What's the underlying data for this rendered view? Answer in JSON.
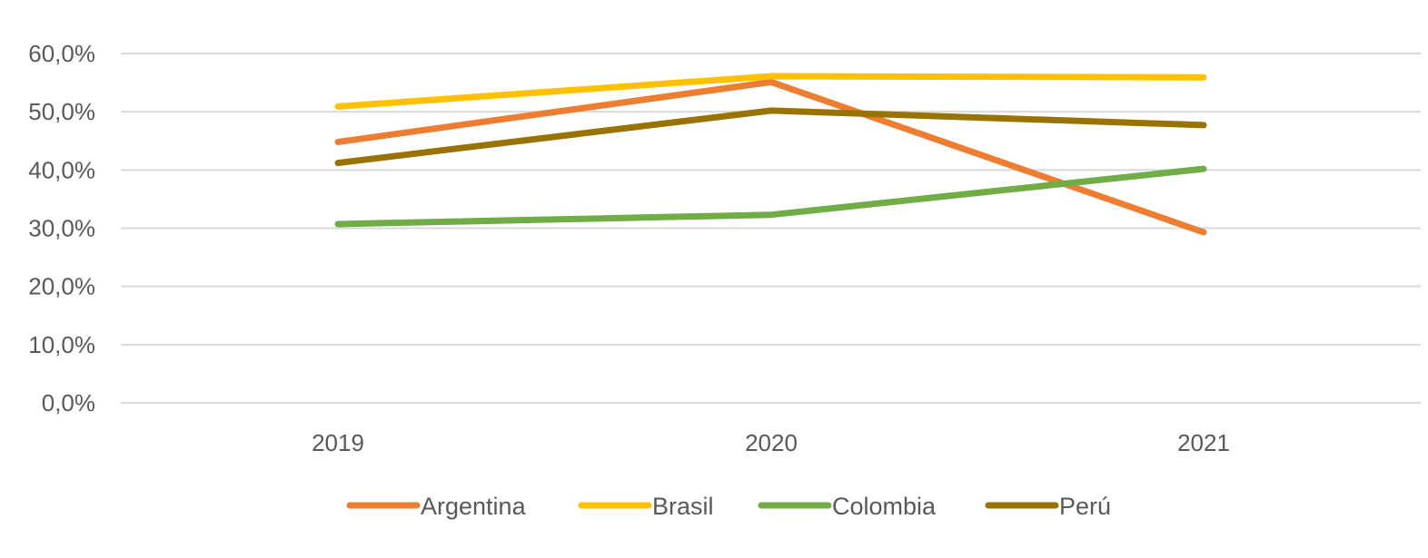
{
  "chart_data": {
    "type": "line",
    "categories": [
      "2019",
      "2020",
      "2021"
    ],
    "series": [
      {
        "name": "Argentina",
        "color": "#ED7D31",
        "values": [
          44.8,
          55.1,
          29.3
        ]
      },
      {
        "name": "Brasil",
        "color": "#FFC000",
        "values": [
          50.9,
          56.1,
          55.9
        ]
      },
      {
        "name": "Colombia",
        "color": "#70AD47",
        "values": [
          30.7,
          32.3,
          40.2
        ]
      },
      {
        "name": "Perú",
        "color": "#997300",
        "values": [
          41.2,
          50.2,
          47.7
        ]
      }
    ],
    "y_ticks": [
      "0,0%",
      "10,0%",
      "20,0%",
      "30,0%",
      "40,0%",
      "50,0%",
      "60,0%"
    ],
    "ylim": [
      0,
      60
    ],
    "y_unit": "%",
    "grid": true,
    "legend_position": "bottom",
    "colors": {
      "gridline": "#D9D9D9",
      "text": "#595959"
    }
  }
}
